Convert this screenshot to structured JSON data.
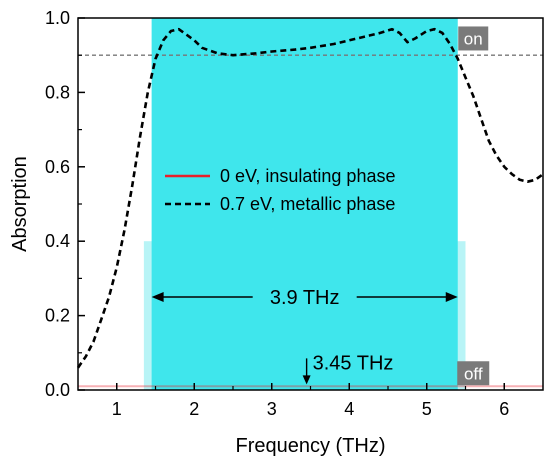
{
  "chart_data": {
    "type": "line",
    "xlabel": "Frequency (THz)",
    "ylabel": "Absorption",
    "xlim": [
      0.5,
      6.5
    ],
    "ylim": [
      0.0,
      1.0
    ],
    "x_ticks": [
      "1",
      "2",
      "3",
      "4",
      "5",
      "6"
    ],
    "y_ticks": [
      "0.0",
      "0.2",
      "0.4",
      "0.6",
      "0.8",
      "1.0"
    ],
    "grid": false,
    "legend_position": "center-left",
    "series": [
      {
        "name": "0 eV, insulating phase",
        "color": "#e8202a",
        "style": "solid",
        "x": [
          0.5,
          1.0,
          1.5,
          2.0,
          2.5,
          3.0,
          3.5,
          4.0,
          4.5,
          5.0,
          5.5,
          6.0,
          6.5
        ],
        "y": [
          0.01,
          0.01,
          0.01,
          0.01,
          0.01,
          0.01,
          0.01,
          0.01,
          0.01,
          0.01,
          0.01,
          0.01,
          0.01
        ]
      },
      {
        "name": "0.7 eV, metallic phase",
        "color": "#000000",
        "style": "dashed",
        "x": [
          0.5,
          0.6,
          0.7,
          0.8,
          0.9,
          1.0,
          1.1,
          1.2,
          1.3,
          1.4,
          1.5,
          1.6,
          1.7,
          1.8,
          1.9,
          2.0,
          2.1,
          2.3,
          2.5,
          2.8,
          3.0,
          3.3,
          3.5,
          3.8,
          4.0,
          4.2,
          4.4,
          4.55,
          4.65,
          4.75,
          4.85,
          5.0,
          5.1,
          5.2,
          5.3,
          5.4,
          5.5,
          5.6,
          5.7,
          5.8,
          5.9,
          6.0,
          6.1,
          6.2,
          6.3,
          6.4,
          6.5
        ],
        "y": [
          0.06,
          0.09,
          0.13,
          0.19,
          0.25,
          0.33,
          0.43,
          0.55,
          0.68,
          0.8,
          0.89,
          0.94,
          0.965,
          0.97,
          0.955,
          0.94,
          0.92,
          0.905,
          0.9,
          0.905,
          0.91,
          0.915,
          0.92,
          0.93,
          0.94,
          0.95,
          0.96,
          0.97,
          0.96,
          0.935,
          0.945,
          0.965,
          0.97,
          0.96,
          0.93,
          0.89,
          0.84,
          0.79,
          0.73,
          0.67,
          0.63,
          0.6,
          0.58,
          0.565,
          0.56,
          0.565,
          0.58
        ]
      }
    ],
    "threshold_line": {
      "y": 0.9,
      "color": "#777777"
    },
    "bands": [
      {
        "x_start": 1.45,
        "x_end": 5.4,
        "y_top": 1.0,
        "color": "#3fe6ec"
      },
      {
        "x_start": 1.35,
        "x_end": 5.5,
        "y_top": 0.4,
        "color": "#b8f4f6"
      }
    ],
    "annotations": {
      "bandwidth": {
        "label": "3.9 THz",
        "x_start": 1.45,
        "x_end": 5.4,
        "y": 0.25
      },
      "center": {
        "label": "3.45 THz",
        "x": 3.45,
        "y_from": 0.085,
        "y_to": 0.015
      },
      "on_badge": {
        "label": "on",
        "x": 5.6,
        "y": 0.945
      },
      "off_badge": {
        "label": "off",
        "x": 5.6,
        "y": 0.045
      }
    }
  }
}
